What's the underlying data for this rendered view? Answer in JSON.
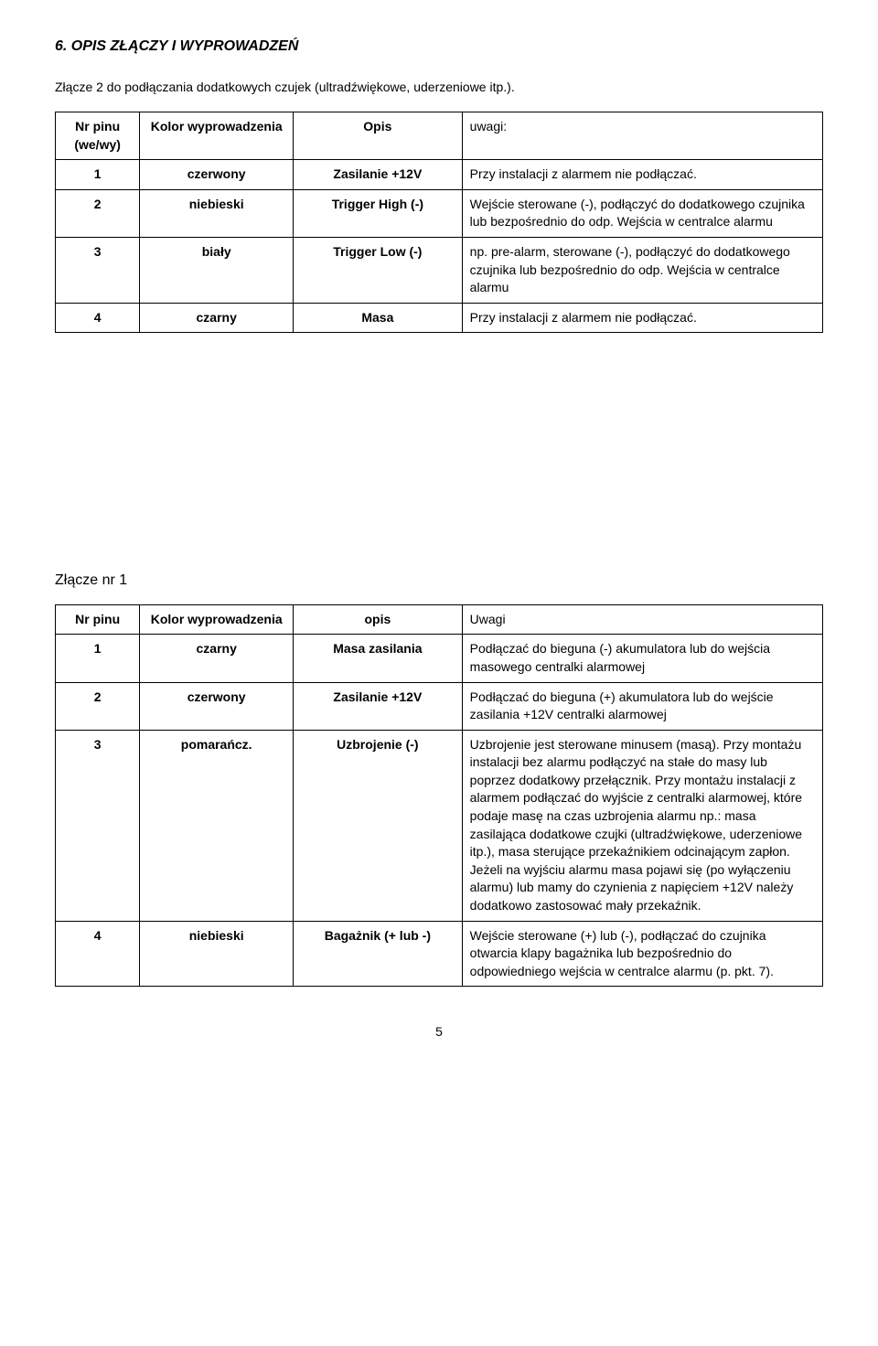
{
  "heading": "6. OPIS ZŁĄCZY I WYPROWADZEŃ",
  "intro": "Złącze 2 do podłączania dodatkowych czujek (ultradźwiękowe, uderzeniowe itp.).",
  "table1": {
    "headers": {
      "pin": "Nr pinu (we/wy)",
      "color": "Kolor wyprowadzenia",
      "desc": "Opis",
      "note": "uwagi:"
    },
    "rows": [
      {
        "pin": "1",
        "color": "czerwony",
        "desc": "Zasilanie +12V",
        "note": "Przy instalacji z alarmem nie podłączać."
      },
      {
        "pin": "2",
        "color": "niebieski",
        "desc": "Trigger High (-)",
        "note": "Wejście sterowane (-), podłączyć do dodatkowego czujnika lub bezpośrednio do odp. Wejścia w centralce alarmu"
      },
      {
        "pin": "3",
        "color": "biały",
        "desc": "Trigger Low (-)",
        "note": "np. pre-alarm, sterowane (-), podłączyć do dodatkowego czujnika lub bezpośrednio do odp. Wejścia w centralce alarmu"
      },
      {
        "pin": "4",
        "color": "czarny",
        "desc": "Masa",
        "note": "Przy instalacji z alarmem nie podłączać."
      }
    ]
  },
  "subheading": "Złącze nr 1",
  "table2": {
    "headers": {
      "pin": "Nr pinu",
      "color": "Kolor wyprowadzenia",
      "desc": "opis",
      "note": "Uwagi"
    },
    "rows": [
      {
        "pin": "1",
        "color": "czarny",
        "desc": "Masa zasilania",
        "note": "Podłączać do bieguna (-) akumulatora lub do wejścia masowego centralki alarmowej"
      },
      {
        "pin": "2",
        "color": "czerwony",
        "desc": "Zasilanie +12V",
        "note": "Podłączać do bieguna (+) akumulatora lub do wejście zasilania +12V  centralki alarmowej"
      },
      {
        "pin": "3",
        "color": "pomarańcz.",
        "desc": "Uzbrojenie (-)",
        "note": "Uzbrojenie jest sterowane minusem (masą). Przy montażu instalacji bez alarmu podłączyć na stałe do masy lub poprzez dodatkowy przełącznik. Przy montażu instalacji z alarmem podłączać do wyjście z centralki alarmowej, które podaje masę na czas uzbrojenia alarmu np.: masa zasilająca dodatkowe czujki (ultradźwiękowe, uderzeniowe itp.), masa sterujące przekaźnikiem odcinającym zapłon. Jeżeli na wyjściu alarmu masa pojawi się (po wyłączeniu alarmu) lub mamy do czynienia z napięciem +12V należy dodatkowo zastosować mały przekaźnik."
      },
      {
        "pin": "4",
        "color": "niebieski",
        "desc": "Bagażnik (+ lub -)",
        "note": "Wejście sterowane (+) lub (-), podłączać do czujnika otwarcia klapy bagażnika lub bezpośrednio do odpowiedniego wejścia w centralce alarmu (p. pkt. 7)."
      }
    ]
  },
  "page_number": "5"
}
